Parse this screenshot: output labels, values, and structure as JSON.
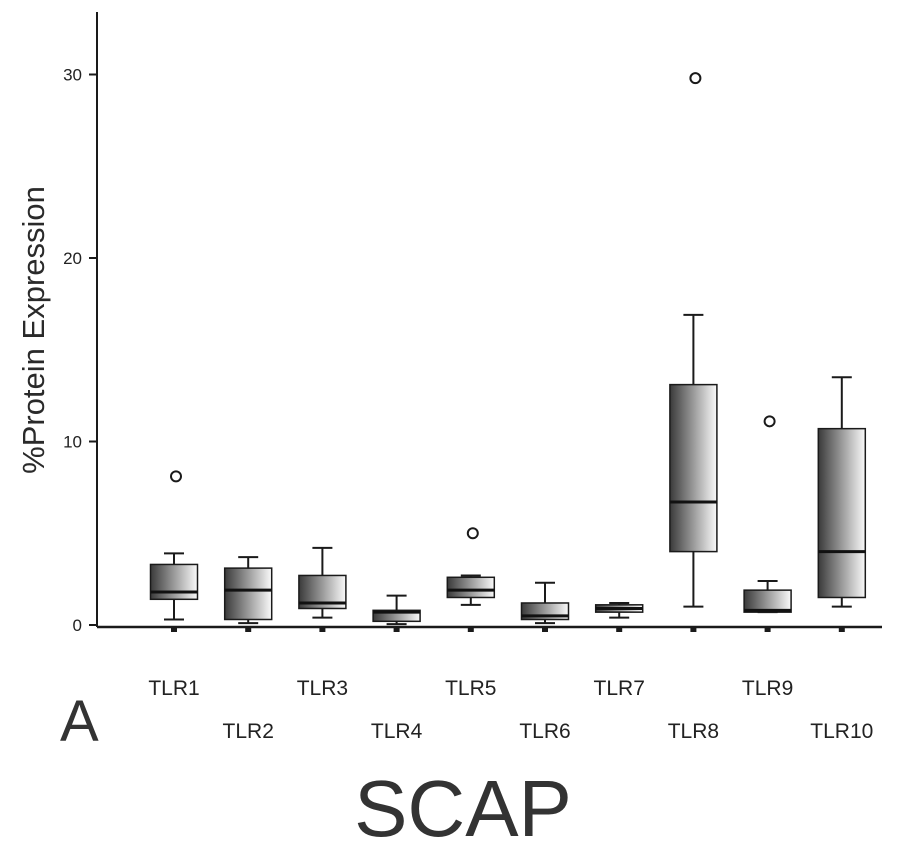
{
  "chart_data": {
    "type": "boxplot",
    "title": "SCAP",
    "panel_label": "A",
    "ylabel": "%Protein Expression",
    "xlabel": "",
    "ylim": [
      0,
      33.5
    ],
    "yticks": [
      0,
      10,
      20,
      30
    ],
    "grid": false,
    "legend": false,
    "categories": [
      "TLR1",
      "TLR2",
      "TLR3",
      "TLR4",
      "TLR5",
      "TLR6",
      "TLR7",
      "TLR8",
      "TLR9",
      "TLR10"
    ],
    "boxes": [
      {
        "category": "TLR1",
        "whisker_low": 0.3,
        "q1": 1.4,
        "median": 1.8,
        "q3": 3.3,
        "whisker_high": 3.9,
        "outliers": [
          8.1
        ]
      },
      {
        "category": "TLR2",
        "whisker_low": 0.1,
        "q1": 0.3,
        "median": 1.9,
        "q3": 3.1,
        "whisker_high": 3.7,
        "outliers": []
      },
      {
        "category": "TLR3",
        "whisker_low": 0.4,
        "q1": 0.9,
        "median": 1.2,
        "q3": 2.7,
        "whisker_high": 4.2,
        "outliers": []
      },
      {
        "category": "TLR4",
        "whisker_low": 0.05,
        "q1": 0.2,
        "median": 0.7,
        "q3": 0.8,
        "whisker_high": 1.6,
        "outliers": []
      },
      {
        "category": "TLR5",
        "whisker_low": 1.1,
        "q1": 1.5,
        "median": 1.9,
        "q3": 2.6,
        "whisker_high": 2.7,
        "outliers": [
          5.0
        ]
      },
      {
        "category": "TLR6",
        "whisker_low": 0.1,
        "q1": 0.3,
        "median": 0.5,
        "q3": 1.2,
        "whisker_high": 2.3,
        "outliers": []
      },
      {
        "category": "TLR7",
        "whisker_low": 0.4,
        "q1": 0.7,
        "median": 0.9,
        "q3": 1.1,
        "whisker_high": 1.2,
        "outliers": []
      },
      {
        "category": "TLR8",
        "whisker_low": 1.0,
        "q1": 4.0,
        "median": 6.7,
        "q3": 13.1,
        "whisker_high": 16.9,
        "outliers": [
          29.8
        ]
      },
      {
        "category": "TLR9",
        "whisker_low": 0.7,
        "q1": 0.7,
        "median": 0.8,
        "q3": 1.9,
        "whisker_high": 2.4,
        "outliers": [
          11.1
        ]
      },
      {
        "category": "TLR10",
        "whisker_low": 1.0,
        "q1": 1.5,
        "median": 4.0,
        "q3": 10.7,
        "whisker_high": 13.5,
        "outliers": []
      }
    ]
  },
  "colors": {
    "axis": "#1a1a1a",
    "box_fill_dark": "#3a3a3a",
    "box_fill_light": "#fafafa",
    "median": "#111111"
  }
}
